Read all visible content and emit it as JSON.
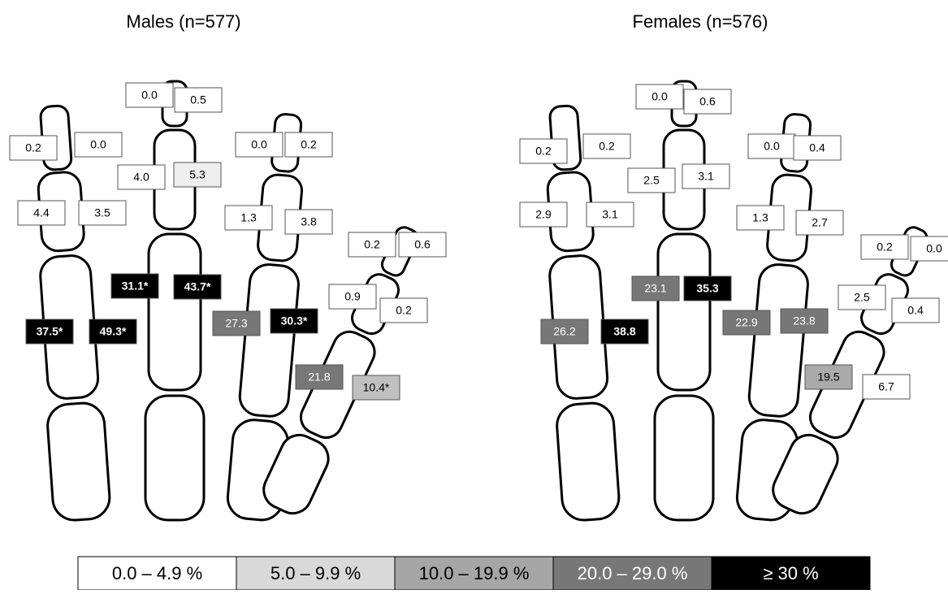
{
  "panels": [
    {
      "title": "Males (n=577)",
      "boxes": [
        {
          "label": "0.2",
          "fill": "#ffffff"
        },
        {
          "label": "0.0",
          "fill": "#ffffff"
        },
        {
          "label": "4.4",
          "fill": "#ffffff"
        },
        {
          "label": "3.5",
          "fill": "#ffffff"
        },
        {
          "label": "37.5*",
          "fill": "#000000"
        },
        {
          "label": "49.3*",
          "fill": "#000000"
        },
        {
          "label": "0.0",
          "fill": "#ffffff"
        },
        {
          "label": "0.5",
          "fill": "#ffffff"
        },
        {
          "label": "4.0",
          "fill": "#ffffff"
        },
        {
          "label": "5.3",
          "fill": "#eeeeee"
        },
        {
          "label": "31.1*",
          "fill": "#000000"
        },
        {
          "label": "43.7*",
          "fill": "#000000"
        },
        {
          "label": "0.0",
          "fill": "#ffffff"
        },
        {
          "label": "0.2",
          "fill": "#ffffff"
        },
        {
          "label": "1.3",
          "fill": "#ffffff"
        },
        {
          "label": "3.8",
          "fill": "#ffffff"
        },
        {
          "label": "27.3",
          "fill": "#777777"
        },
        {
          "label": "30.3*",
          "fill": "#000000"
        },
        {
          "label": "0.2",
          "fill": "#ffffff"
        },
        {
          "label": "0.6",
          "fill": "#ffffff"
        },
        {
          "label": "0.9",
          "fill": "#ffffff"
        },
        {
          "label": "0.2",
          "fill": "#ffffff"
        },
        {
          "label": "21.8",
          "fill": "#777777"
        },
        {
          "label": "10.4*",
          "fill": "#c0c0c0"
        }
      ]
    },
    {
      "title": "Females (n=576)",
      "boxes": [
        {
          "label": "0.2",
          "fill": "#ffffff"
        },
        {
          "label": "0.2",
          "fill": "#ffffff"
        },
        {
          "label": "2.9",
          "fill": "#ffffff"
        },
        {
          "label": "3.1",
          "fill": "#ffffff"
        },
        {
          "label": "26.2",
          "fill": "#777777"
        },
        {
          "label": "38.8",
          "fill": "#000000"
        },
        {
          "label": "0.0",
          "fill": "#ffffff"
        },
        {
          "label": "0.6",
          "fill": "#ffffff"
        },
        {
          "label": "2.5",
          "fill": "#ffffff"
        },
        {
          "label": "3.1",
          "fill": "#ffffff"
        },
        {
          "label": "23.1",
          "fill": "#777777"
        },
        {
          "label": "35.3",
          "fill": "#000000"
        },
        {
          "label": "0.0",
          "fill": "#ffffff"
        },
        {
          "label": "0.4",
          "fill": "#ffffff"
        },
        {
          "label": "1.3",
          "fill": "#ffffff"
        },
        {
          "label": "2.7",
          "fill": "#ffffff"
        },
        {
          "label": "22.9",
          "fill": "#777777"
        },
        {
          "label": "23.8",
          "fill": "#777777"
        },
        {
          "label": "0.2",
          "fill": "#ffffff"
        },
        {
          "label": "0.0",
          "fill": "#ffffff"
        },
        {
          "label": "2.5",
          "fill": "#ffffff"
        },
        {
          "label": "0.4",
          "fill": "#ffffff"
        },
        {
          "label": "19.5",
          "fill": "#aaaaaa"
        },
        {
          "label": "6.7",
          "fill": "#ffffff"
        }
      ]
    }
  ],
  "legend": [
    {
      "label": "0.0 – 4.9 %",
      "fill": "#ffffff"
    },
    {
      "label": "5.0 – 9.9 %",
      "fill": "#d9d9d9"
    },
    {
      "label": "10.0 – 19.9 %",
      "fill": "#a6a6a6"
    },
    {
      "label": "20.0 – 29.0 %",
      "fill": "#777777"
    },
    {
      "label": "≥ 30 %",
      "fill": "#000000"
    }
  ]
}
